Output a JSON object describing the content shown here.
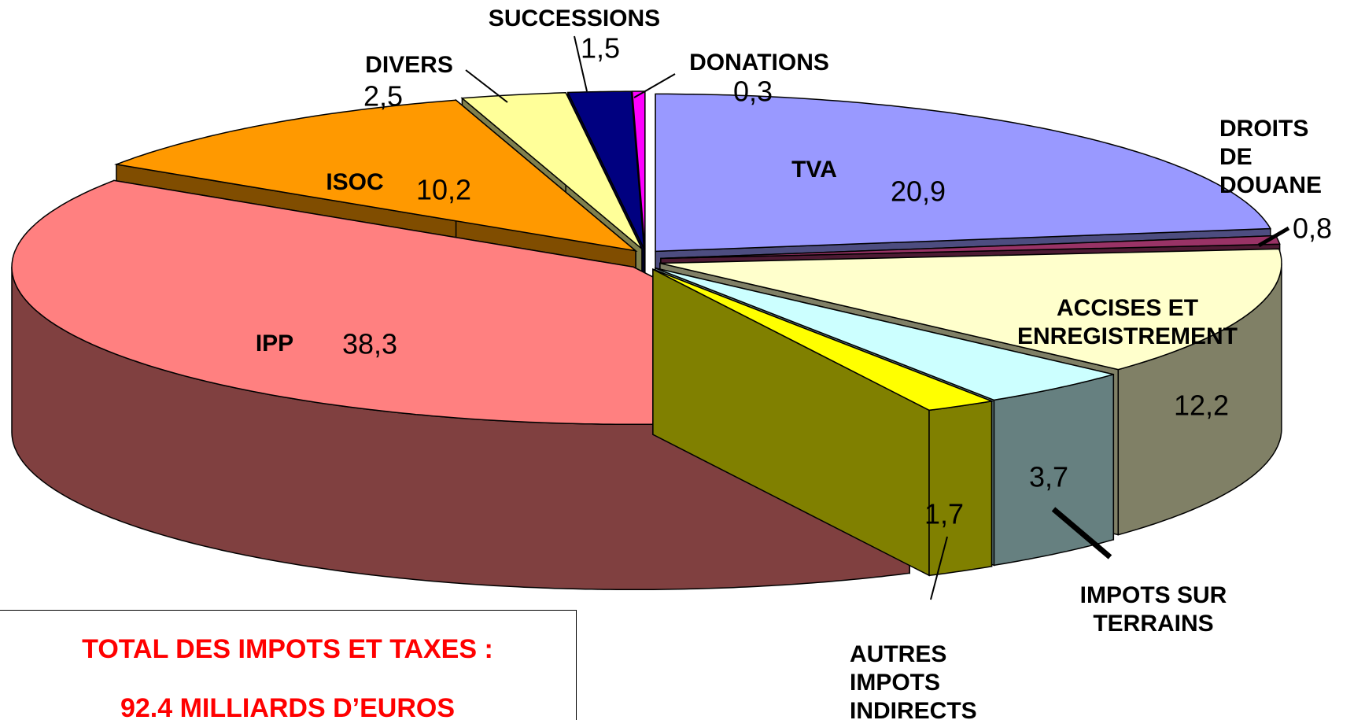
{
  "chart_data": {
    "type": "pie3d",
    "categories": [
      "TVA",
      "DROITS DE DOUANE",
      "ACCISES ET ENREGISTREMENT",
      "IMPOTS SUR TERRAINS",
      "AUTRES IMPOTS INDIRECTS",
      "IPP",
      "ISOC",
      "DIVERS",
      "SUCCESSIONS",
      "DONATIONS"
    ],
    "values": [
      20.9,
      0.8,
      12.2,
      3.7,
      1.7,
      38.3,
      10.2,
      2.5,
      1.5,
      0.3
    ],
    "value_labels": [
      "20,9",
      "0,8",
      "12,2",
      "3,7",
      "1,7",
      "38,3",
      "10,2",
      "2,5",
      "1,5",
      "0,3"
    ],
    "colors": [
      "#9999ff",
      "#993366",
      "#ffffcc",
      "#ccffff",
      "#ffff00",
      "#ff8080",
      "#ff9900",
      "#ffff99",
      "#000080",
      "#ff00ff"
    ],
    "annotations": [
      "TOTAL DES IMPOTS ET TAXES :",
      "92.4 MILLIARDS D’EUROS"
    ]
  }
}
